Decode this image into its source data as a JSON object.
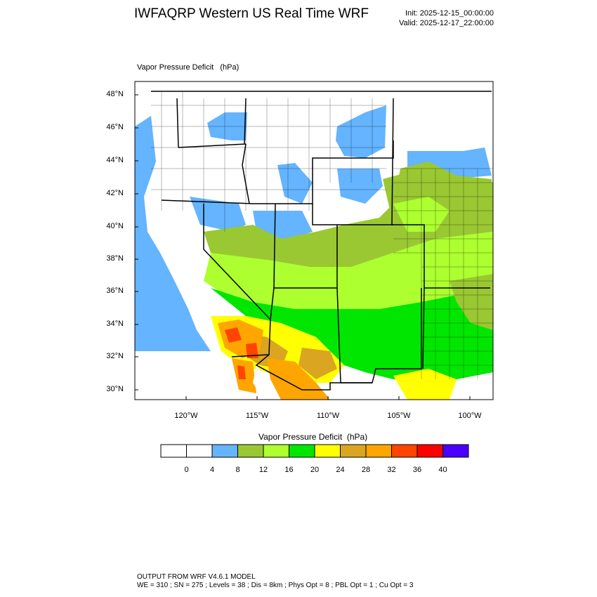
{
  "header": {
    "title": "IWFAQRP Western US Real Time WRF",
    "init": "Init: 2025-12-15_00:00:00",
    "valid": "Valid: 2025-12-17_22:00:00"
  },
  "map": {
    "subtitle": "Vapor Pressure Deficit   (hPa)",
    "lat_labels": [
      "48°N",
      "46°N",
      "44°N",
      "42°N",
      "40°N",
      "38°N",
      "36°N",
      "34°N",
      "32°N",
      "30°N"
    ],
    "lon_labels": [
      "120°W",
      "115°W",
      "110°W",
      "105°W",
      "100°W"
    ]
  },
  "legend": {
    "title": "Vapor Pressure Deficit  (hPa)",
    "ticks": [
      "0",
      "4",
      "8",
      "12",
      "16",
      "20",
      "24",
      "28",
      "32",
      "36",
      "40"
    ],
    "colors": [
      "#ffffff",
      "#ffffff",
      "#64b4ff",
      "#9ac832",
      "#adff2f",
      "#00e600",
      "#ffff00",
      "#daa520",
      "#ffa500",
      "#ff4500",
      "#ff0000",
      "#4b00ff"
    ]
  },
  "footer": {
    "line1": "OUTPUT FROM WRF V4.6.1 MODEL",
    "line2": "WE = 310 ; SN = 275 ; Levels = 38 ; Dis = 8km ; Phys Opt = 8 ; PBL Opt = 1 ; Cu Opt = 3"
  }
}
